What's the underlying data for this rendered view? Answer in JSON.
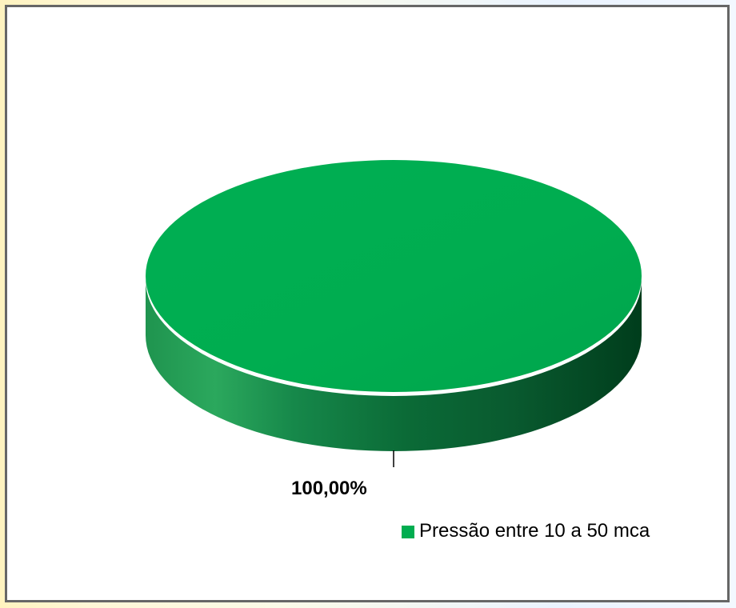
{
  "chart_data": {
    "type": "pie",
    "categories": [
      "Pressão entre 10 a 50 mca"
    ],
    "values": [
      100
    ],
    "data_labels": [
      "100,00%"
    ],
    "legend": {
      "placement": "bottom-right",
      "entries": [
        "Pressão entre 10 a 50 mca"
      ]
    },
    "colors": [
      "#00ad50"
    ],
    "three_d": true
  }
}
